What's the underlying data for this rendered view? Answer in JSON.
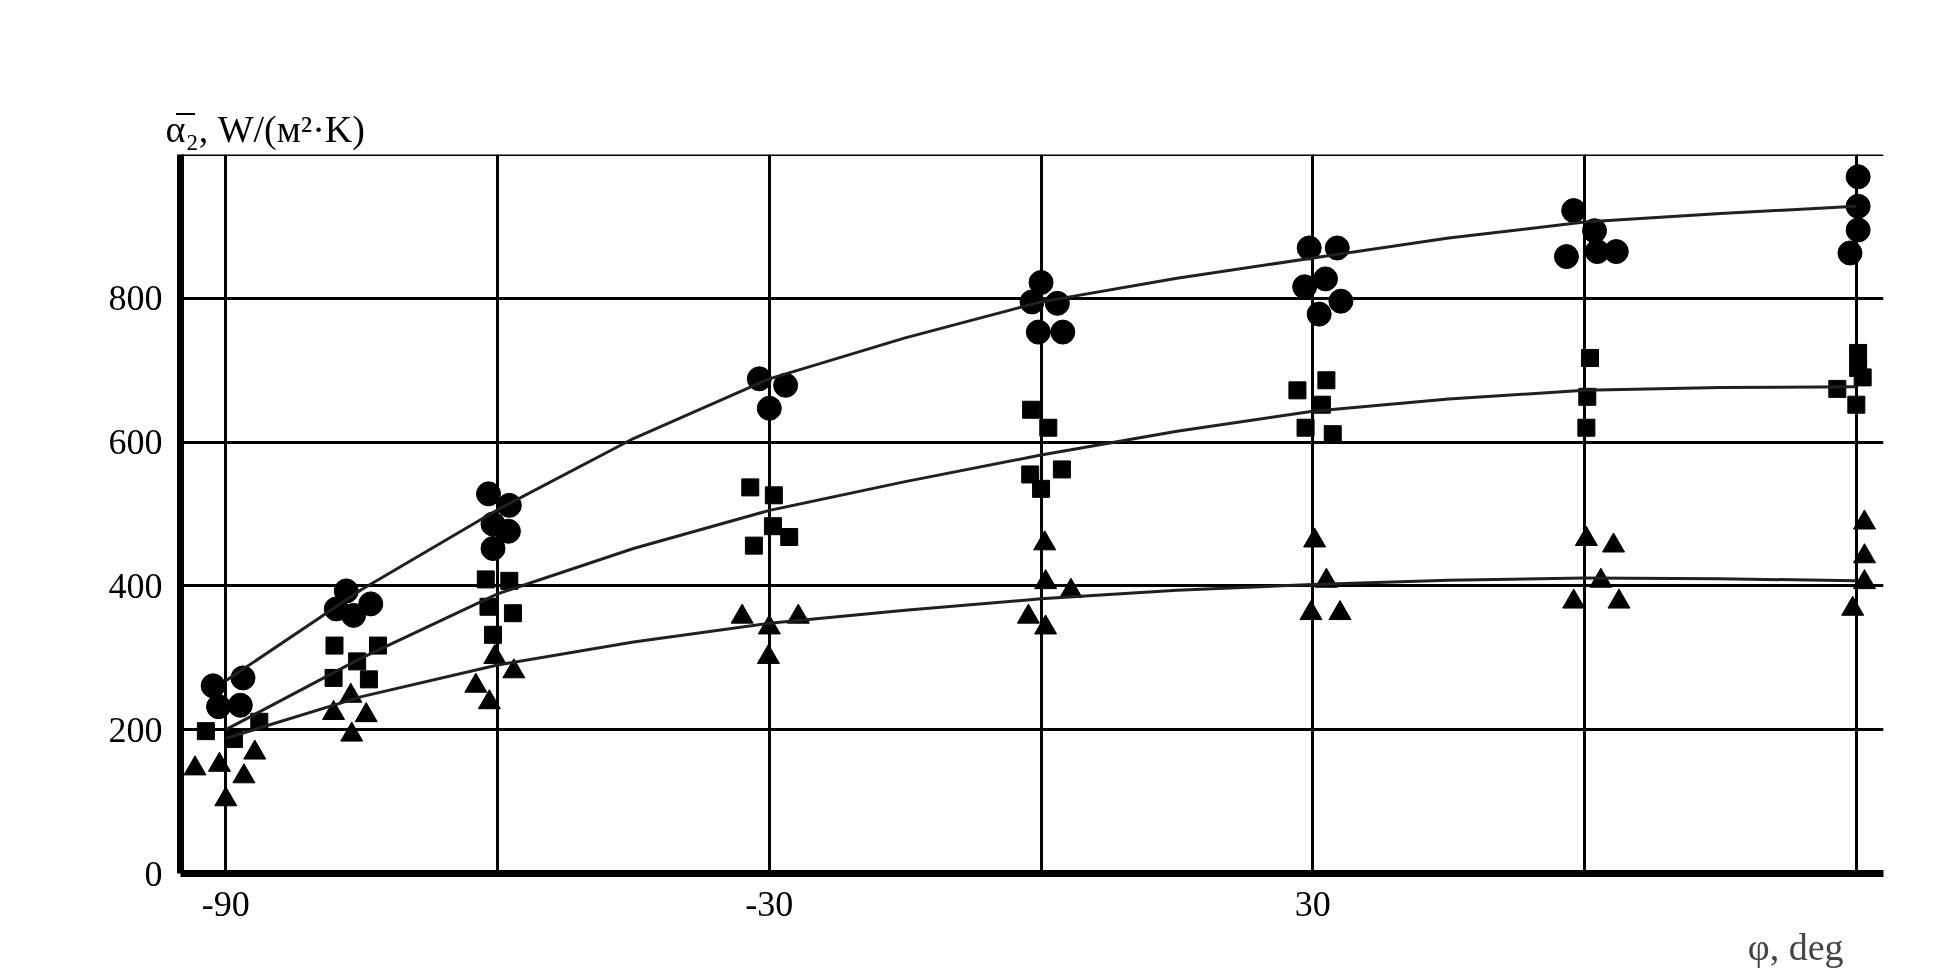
{
  "chart_data": {
    "type": "scatter",
    "ylabel": "α̅₂, W/(м²·K)",
    "xlabel": "φ, deg",
    "xlim": [
      -95,
      93
    ],
    "ylim": [
      0,
      1000
    ],
    "xticks": [
      -90,
      {
        "value": -60,
        "label": null
      },
      -30,
      {
        "value": 0,
        "label": null
      },
      30,
      {
        "value": 60,
        "label": null
      },
      {
        "value": 90,
        "label": null
      }
    ],
    "yticks": [
      0,
      200,
      400,
      600,
      800,
      {
        "value": 1000,
        "label": null
      }
    ],
    "grid": true,
    "series": [
      {
        "marker": "circle",
        "color": "#000000",
        "x": [
          -91.4,
          -90.8,
          -88.4,
          -88.1,
          -77.8,
          -76.7,
          -75.9,
          -74.0,
          -61.0,
          -58.7,
          -60.5,
          -58.8,
          -60.5,
          -31.1,
          -28.2,
          -30,
          0,
          -1,
          1.8,
          -0.3,
          2.4,
          29.6,
          32.7,
          29.1,
          31.4,
          30.7,
          33.1,
          58.8,
          61.1,
          58,
          61.4,
          63.5,
          90.2,
          90.2,
          90.2,
          89.3
        ],
        "values": [
          261,
          232,
          234,
          272,
          368,
          393,
          359,
          375,
          528,
          512,
          486,
          476,
          452,
          688,
          679,
          647,
          822,
          795,
          793,
          753,
          753,
          870,
          870,
          816,
          827,
          778,
          796,
          922,
          894,
          858,
          865,
          865,
          969,
          928,
          895,
          863
        ]
      },
      {
        "marker": "square",
        "color": "#000000",
        "x": [
          -92.2,
          -89.1,
          -86.3,
          -78.1,
          -78,
          -75.5,
          -74.2,
          -73.2,
          -61.3,
          -58.7,
          -61,
          -58.3,
          -60.5,
          -32.1,
          -29.5,
          -29.6,
          -31.7,
          -27.8,
          -1.1,
          0.8,
          -1.2,
          2.3,
          0,
          28.3,
          31.5,
          31,
          29.2,
          32.2,
          60.6,
          60.3,
          60.2,
          87.9,
          90.2,
          90.7,
          90,
          90.2
        ],
        "values": [
          198,
          187,
          211,
          272,
          317,
          295,
          270,
          317,
          409,
          407,
          371,
          362,
          332,
          537,
          526,
          483,
          456,
          468,
          645,
          620,
          555,
          562,
          535,
          672,
          686,
          652,
          620,
          611,
          717,
          663,
          620,
          674,
          724,
          690,
          652,
          703
        ]
      },
      {
        "marker": "triangle",
        "color": "#000000",
        "x": [
          -93.4,
          -90.7,
          -90,
          -88,
          -86.8,
          -78.1,
          -76.2,
          -76.1,
          -74.5,
          -62.4,
          -60.9,
          -60.3,
          -58.2,
          -33,
          -30,
          -30.1,
          -26.8,
          0.4,
          -1.4,
          0.5,
          0.5,
          3.3,
          30.2,
          29.8,
          31.5,
          33,
          60.2,
          63.2,
          61.8,
          58.8,
          63.8,
          90.9,
          90.9,
          90.9,
          89.6
        ],
        "values": [
          146,
          151,
          103,
          135,
          168,
          223,
          247,
          193,
          220,
          261,
          238,
          301,
          281,
          357,
          342,
          301,
          357,
          459,
          357,
          405,
          342,
          393,
          463,
          362,
          407,
          362,
          465,
          456,
          407,
          378,
          378,
          488,
          441,
          405,
          368
        ]
      },
      {
        "type": "line",
        "color": "#231f20",
        "x": [
          -90,
          -75,
          -60,
          -45,
          -30,
          -15,
          0,
          15,
          30,
          45,
          60,
          75,
          90
        ],
        "values": [
          268,
          395,
          506,
          605,
          688,
          745,
          795,
          828,
          856,
          884,
          906,
          918,
          928
        ]
      },
      {
        "type": "line",
        "color": "#231f20",
        "x": [
          -90,
          -75,
          -60,
          -45,
          -30,
          -15,
          0,
          15,
          30,
          45,
          60,
          75,
          90
        ],
        "values": [
          200,
          300,
          389,
          452,
          505,
          545,
          582,
          615,
          643,
          660,
          672,
          676,
          677
        ]
      },
      {
        "type": "line",
        "color": "#231f20",
        "x": [
          -90,
          -75,
          -60,
          -45,
          -30,
          -15,
          0,
          15,
          30,
          45,
          60,
          75,
          90
        ],
        "values": [
          188,
          246,
          290,
          322,
          348,
          366,
          382,
          394,
          402,
          408,
          411,
          410,
          407
        ]
      }
    ]
  }
}
